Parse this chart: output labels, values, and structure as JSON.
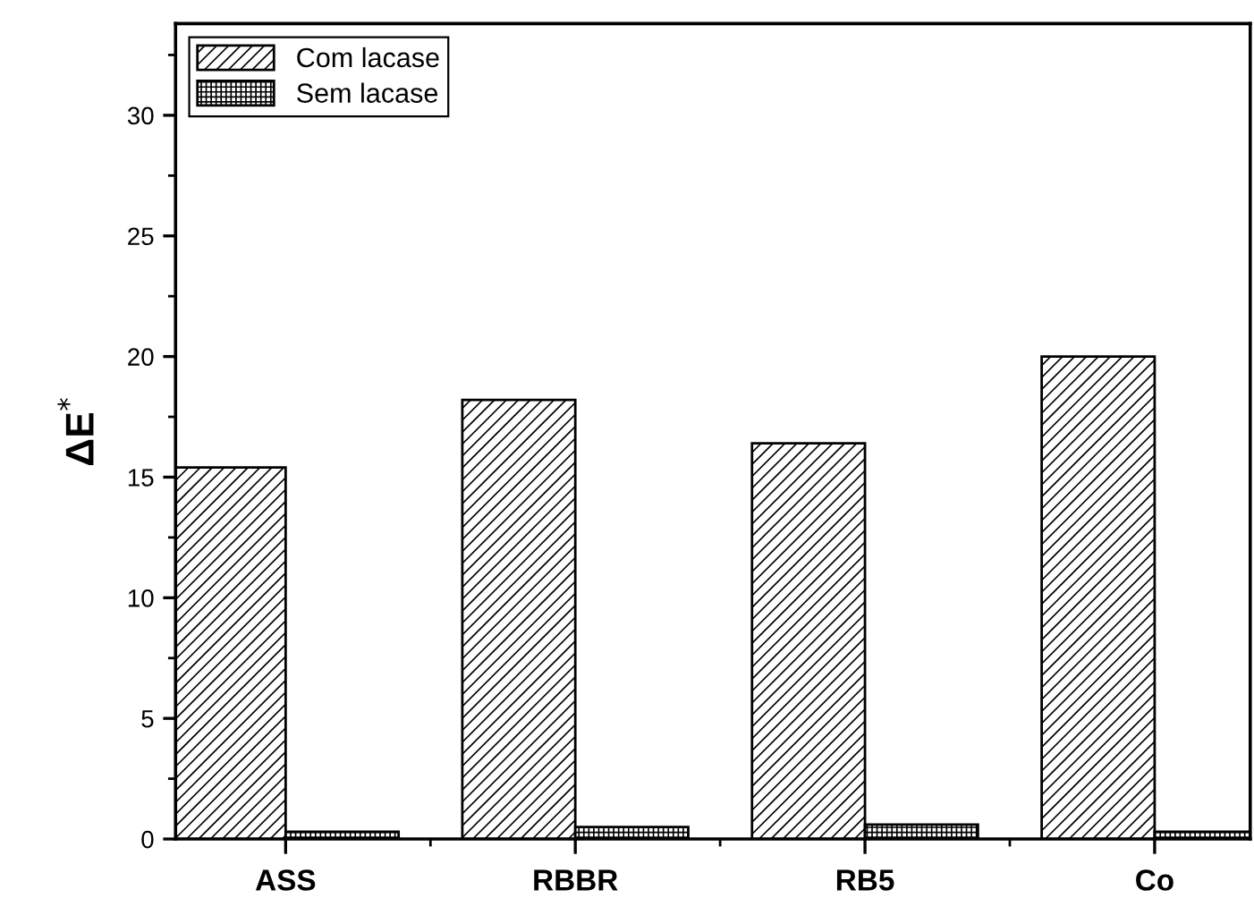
{
  "chart_data": {
    "type": "bar",
    "ylabel": "ΔE$^{*}$",
    "categories": [
      "ASS",
      "RBBR",
      "RB5",
      "Co"
    ],
    "series": [
      {
        "name": "Com lacase",
        "color": "#000000",
        "values": [
          15.4,
          18.2,
          16.4,
          20.0
        ]
      },
      {
        "name": "Sem lacase",
        "color": "#000000",
        "values": [
          0.3,
          0.5,
          0.6,
          0.3
        ]
      }
    ],
    "ylim": [
      0,
      33.8
    ],
    "yticks": [
      0,
      5,
      10,
      15,
      20,
      25,
      30
    ],
    "grid": false,
    "legend": "top left"
  }
}
